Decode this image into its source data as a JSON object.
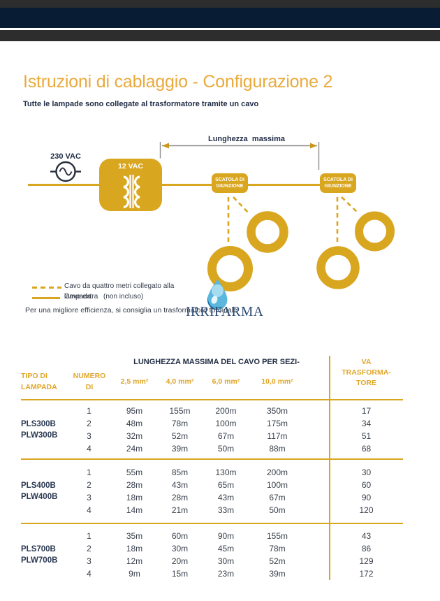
{
  "chrome": {
    "top_bar_color": "#2D2D2D",
    "toolbar_color": "#081C33"
  },
  "page": {
    "title": "Istruzioni di cablaggio - Configurazione 2",
    "subtitle": "Tutte le lampade sono collegate al trasformatore tramite un cavo"
  },
  "diagram": {
    "source_label": "230 VAC",
    "transformer_label": "12 VAC",
    "dimension_label": "Lunghezza  massima",
    "junction_box": {
      "line1": "SCATOLA DI",
      "line2": "GIUNZIONE"
    },
    "legend": {
      "dashed_line1": "Cavo da quattro metri collegato alla",
      "dashed_line2": "lampada",
      "solid_text": "Cavo extra",
      "solid_suffix": "(non incluso)",
      "note": "Per una migliore efficienza, si consiglia un trasformatore toroidale"
    },
    "logo_text": "IRRIFARMA"
  },
  "table": {
    "group_header": "LUNGHEZZA MASSIMA DEL CAVO PER SEZI-",
    "headers": {
      "lamp_line1": "TIPO DI",
      "lamp_line2": "LAMPADA",
      "num_line1": "NUMERO",
      "num_line2": "DI",
      "sections": [
        "2,5 mm²",
        "4,0 mm²",
        "6,0 mm²",
        "10,0 mm²"
      ],
      "va_line1": "VA",
      "va_line2": "TRASFORMA-",
      "va_line3": "TORE"
    },
    "groups": [
      {
        "lamp_types": [
          "PLS300B",
          "PLW300B"
        ],
        "rows": [
          {
            "n": "1",
            "values": [
              "95m",
              "155m",
              "200m",
              "350m"
            ],
            "va": "17"
          },
          {
            "n": "2",
            "values": [
              "48m",
              "78m",
              "100m",
              "175m"
            ],
            "va": "34"
          },
          {
            "n": "3",
            "values": [
              "32m",
              "52m",
              "67m",
              "117m"
            ],
            "va": "51"
          },
          {
            "n": "4",
            "values": [
              "24m",
              "39m",
              "50m",
              "88m"
            ],
            "va": "68"
          }
        ]
      },
      {
        "lamp_types": [
          "PLS400B",
          "PLW400B"
        ],
        "rows": [
          {
            "n": "1",
            "values": [
              "55m",
              "85m",
              "130m",
              "200m"
            ],
            "va": "30"
          },
          {
            "n": "2",
            "values": [
              "28m",
              "43m",
              "65m",
              "100m"
            ],
            "va": "60"
          },
          {
            "n": "3",
            "values": [
              "18m",
              "28m",
              "43m",
              "67m"
            ],
            "va": "90"
          },
          {
            "n": "4",
            "values": [
              "14m",
              "21m",
              "33m",
              "50m"
            ],
            "va": "120"
          }
        ]
      },
      {
        "lamp_types": [
          "PLS700B",
          "PLW700B"
        ],
        "rows": [
          {
            "n": "1",
            "values": [
              "35m",
              "60m",
              "90m",
              "155m"
            ],
            "va": "43"
          },
          {
            "n": "2",
            "values": [
              "18m",
              "30m",
              "45m",
              "78m"
            ],
            "va": "86"
          },
          {
            "n": "3",
            "values": [
              "12m",
              "20m",
              "30m",
              "52m"
            ],
            "va": "129"
          },
          {
            "n": "4",
            "values": [
              "9m",
              "15m",
              "23m",
              "39m"
            ],
            "va": "172"
          }
        ]
      }
    ]
  },
  "colors": {
    "gold": "#D9A620",
    "title_gold": "#EAAA3C",
    "header_gold": "#E0A62A",
    "navy_text": "#1F2B45",
    "body_text": "#39404C",
    "dimension_gray": "#8E8E8E",
    "logo_navy": "#2C4A73",
    "drop_blue_light": "#A6DCF0",
    "drop_blue_mid": "#5BB7DE",
    "drop_blue_dark": "#1B6FAD"
  }
}
